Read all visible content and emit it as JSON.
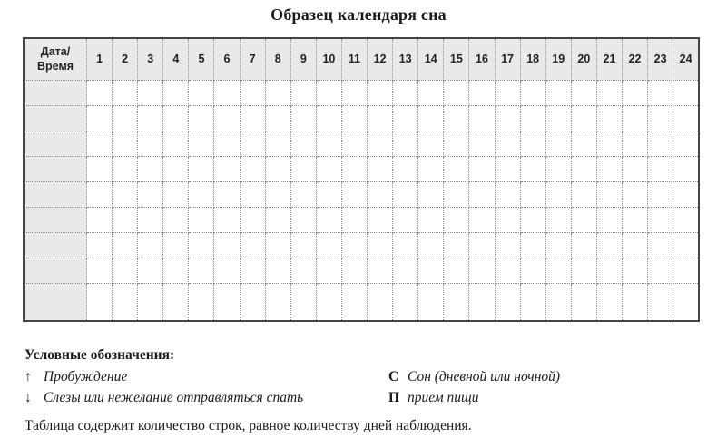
{
  "title": "Образец календаря сна",
  "table": {
    "corner": {
      "line1": "Дата/",
      "line2": "Время"
    },
    "hours": [
      "1",
      "2",
      "3",
      "4",
      "5",
      "6",
      "7",
      "8",
      "9",
      "10",
      "11",
      "12",
      "13",
      "14",
      "15",
      "16",
      "17",
      "18",
      "19",
      "20",
      "21",
      "22",
      "23",
      "24"
    ],
    "body_rows": 9
  },
  "legend": {
    "heading": "Условные обозначения:",
    "items_left": [
      {
        "symbol": "↑",
        "label": "Пробуждение"
      },
      {
        "symbol": "↓",
        "label": "Слезы или нежелание отправляться спать"
      }
    ],
    "items_right": [
      {
        "symbol": "С",
        "label": "Сон (дневной или ночной)"
      },
      {
        "symbol": "П",
        "label": "прием пищи"
      }
    ]
  },
  "footnote": "Таблица содержит количество строк, равное количеству дней наблюдения.",
  "colors": {
    "header_fill": "#e9e9e9",
    "grid_line": "#8c8c8c",
    "border": "#454545",
    "text": "#1a1a1a"
  }
}
